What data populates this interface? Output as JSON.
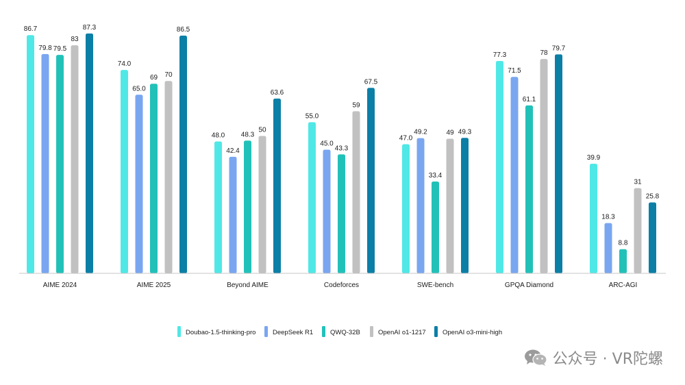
{
  "chart_data": {
    "type": "bar",
    "title": "",
    "xlabel": "",
    "ylabel": "",
    "ylim": [
      0,
      90
    ],
    "grid": false,
    "legend_position": "bottom",
    "categories": [
      "AIME 2024",
      "AIME 2025",
      "Beyond AIME",
      "Codeforces",
      "SWE-bench",
      "GPQA Diamond",
      "ARC-AGI"
    ],
    "series": [
      {
        "name": "Doubao-1.5-thinking-pro",
        "color": "#4fe8e6",
        "values": [
          86.7,
          74.0,
          48.0,
          55.0,
          47.0,
          77.3,
          39.9
        ],
        "labels": [
          "86.7",
          "74.0",
          "48.0",
          "55.0",
          "47.0",
          "77.3",
          "39.9"
        ]
      },
      {
        "name": "DeepSeek R1",
        "color": "#7aa6f0",
        "values": [
          79.8,
          65.0,
          42.4,
          45.0,
          49.2,
          71.5,
          18.3
        ],
        "labels": [
          "79.8",
          "65.0",
          "42.4",
          "45.0",
          "49.2",
          "71.5",
          "18.3"
        ]
      },
      {
        "name": "QWQ-32B",
        "color": "#22c1b8",
        "values": [
          79.5,
          69,
          48.3,
          43.3,
          33.4,
          61.1,
          8.8
        ],
        "labels": [
          "79.5",
          "69",
          "48.3",
          "43.3",
          "33.4",
          "61.1",
          "8.8"
        ]
      },
      {
        "name": "OpenAI o1-1217",
        "color": "#c1c1c1",
        "values": [
          83,
          70,
          50,
          59,
          49,
          78,
          31
        ],
        "labels": [
          "83",
          "70",
          "50",
          "59",
          "49",
          "78",
          "31"
        ]
      },
      {
        "name": "OpenAI o3-mini-high",
        "color": "#0c7fa6",
        "values": [
          87.3,
          86.5,
          63.6,
          67.5,
          49.3,
          79.7,
          25.8
        ],
        "labels": [
          "87.3",
          "86.5",
          "63.6",
          "67.5",
          "49.3",
          "79.7",
          "25.8"
        ]
      }
    ]
  },
  "watermark": {
    "text": "公众号 · VR陀螺",
    "icon": "wechat-icon"
  }
}
